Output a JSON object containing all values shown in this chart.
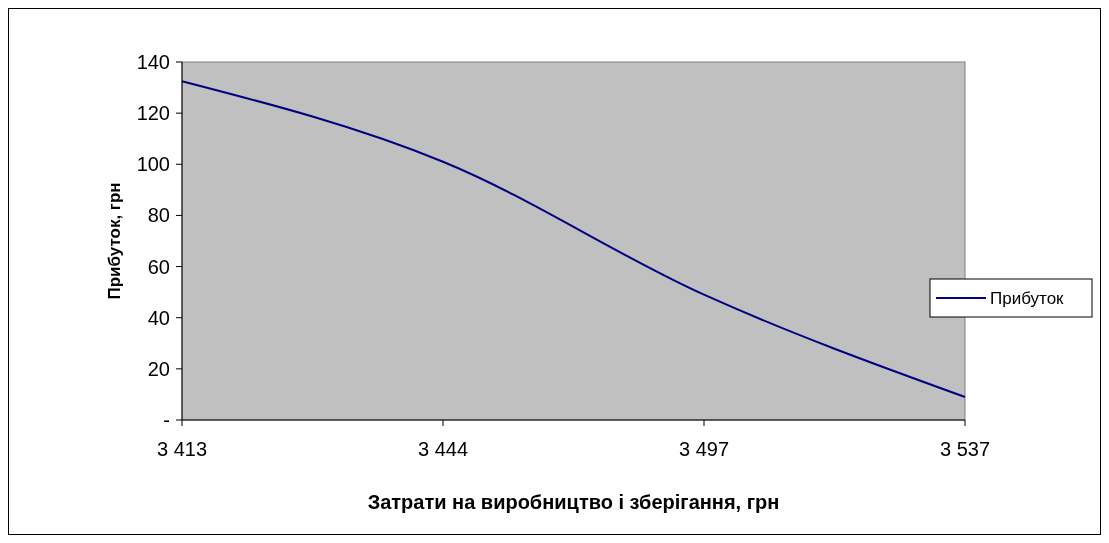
{
  "chart_data": {
    "type": "line",
    "xlabel": "Затрати на виробництво і зберігання, грн",
    "ylabel": "Прибуток,  грн",
    "categories": [
      "3 413",
      "3 444",
      "3 497",
      "3 537"
    ],
    "series": [
      {
        "name": "Прибуток",
        "color": "#000080",
        "values": [
          132.5,
          101,
          49,
          9
        ]
      }
    ],
    "ylim": [
      0,
      140
    ],
    "yticks": [
      {
        "value": 0,
        "label": "-"
      },
      20,
      40,
      60,
      80,
      100,
      120,
      140
    ],
    "grid": false,
    "legend": "right",
    "marker": "none",
    "line_style": "solid"
  }
}
